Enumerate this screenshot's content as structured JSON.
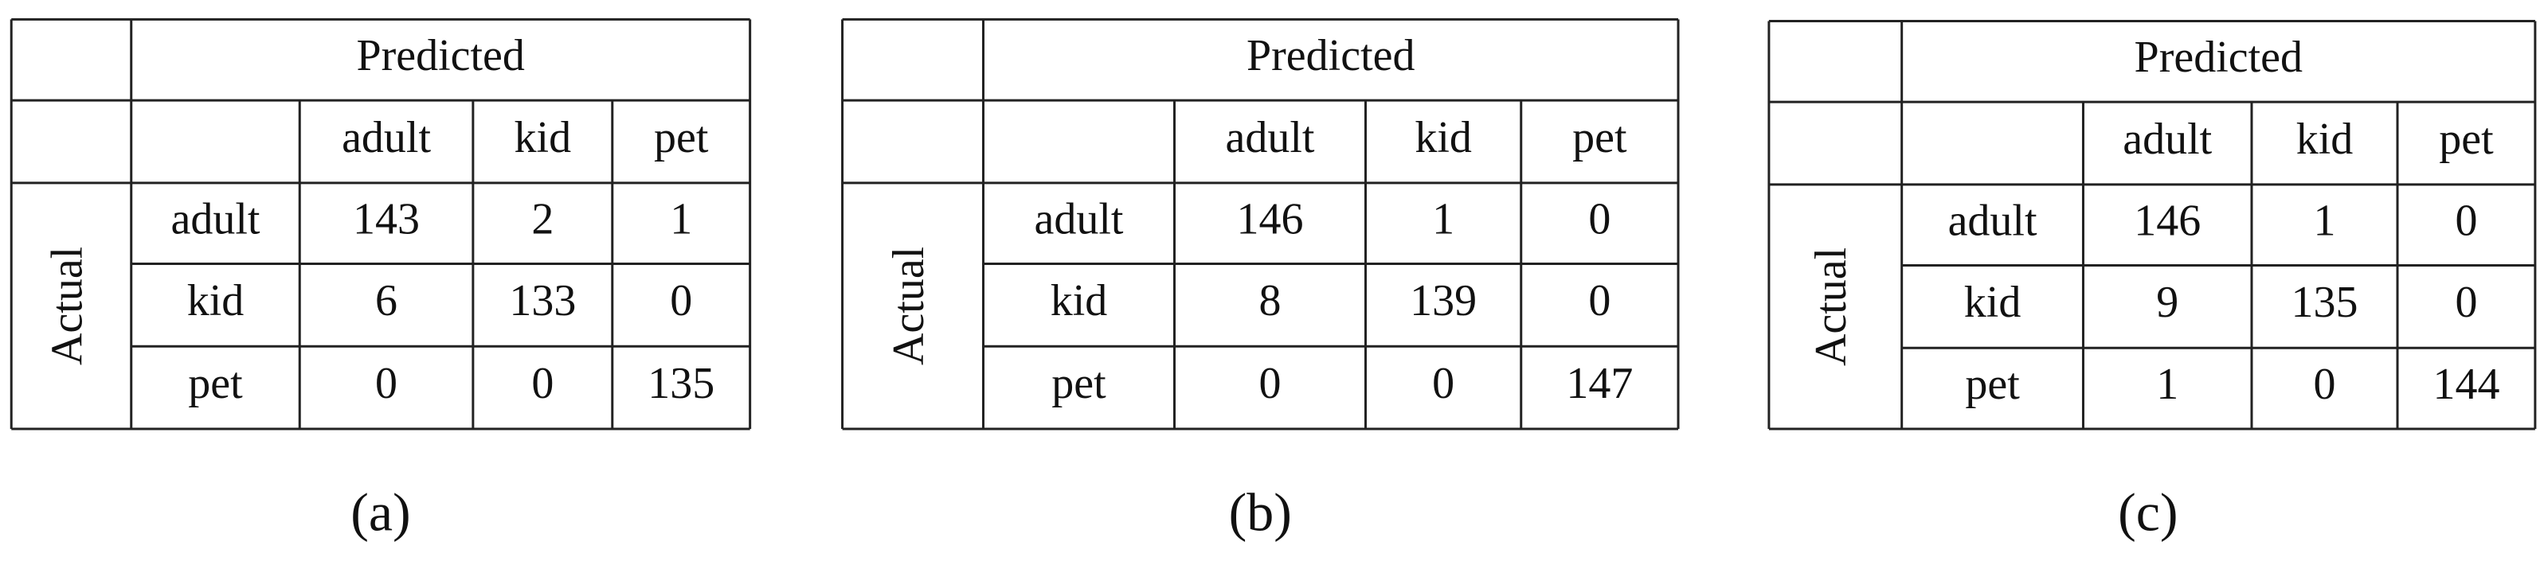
{
  "tables": [
    {
      "header": "Predicted",
      "row_header": "Actual",
      "columns": [
        "adult",
        "kid",
        "pet"
      ],
      "rows": [
        {
          "label": "adult",
          "values": [
            143,
            2,
            1
          ]
        },
        {
          "label": "kid",
          "values": [
            6,
            133,
            0
          ]
        },
        {
          "label": "pet",
          "values": [
            0,
            0,
            135
          ]
        }
      ],
      "caption": "(a)"
    },
    {
      "header": "Predicted",
      "row_header": "Actual",
      "columns": [
        "adult",
        "kid",
        "pet"
      ],
      "rows": [
        {
          "label": "adult",
          "values": [
            146,
            1,
            0
          ]
        },
        {
          "label": "kid",
          "values": [
            8,
            139,
            0
          ]
        },
        {
          "label": "pet",
          "values": [
            0,
            0,
            147
          ]
        }
      ],
      "caption": "(b)"
    },
    {
      "header": "Predicted",
      "row_header": "Actual",
      "columns": [
        "adult",
        "kid",
        "pet"
      ],
      "rows": [
        {
          "label": "adult",
          "values": [
            146,
            1,
            0
          ]
        },
        {
          "label": "kid",
          "values": [
            9,
            135,
            0
          ]
        },
        {
          "label": "pet",
          "values": [
            1,
            0,
            144
          ]
        }
      ],
      "caption": "(c)"
    }
  ]
}
